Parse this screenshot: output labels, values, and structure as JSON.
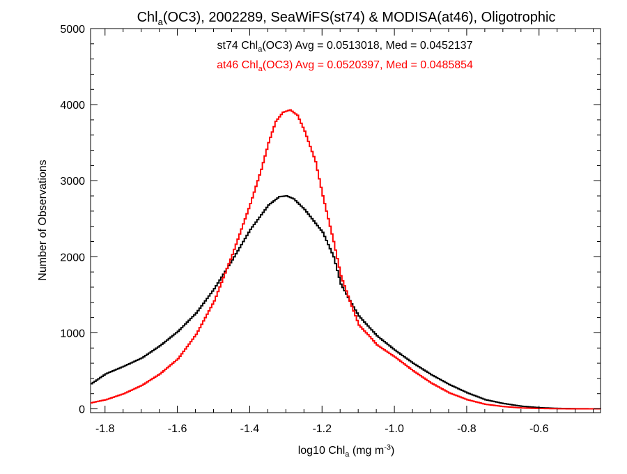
{
  "chart_data": {
    "type": "line",
    "title": {
      "pre": "Chl",
      "sub": "a",
      "post": "(OC3), 2002289, SeaWiFS(st74) & MODISA(at46), Oligotrophic"
    },
    "xlabel": {
      "pre": "log10 Chl",
      "sub": "a",
      "mid": " (mg m",
      "sup": "-3",
      "post": ")"
    },
    "ylabel": "Number of Observations",
    "xlim": [
      -1.84,
      -0.43
    ],
    "ylim": [
      -50,
      5000
    ],
    "x_ticks": [
      -1.8,
      -1.6,
      -1.4,
      -1.2,
      -1.0,
      -0.8,
      -0.6
    ],
    "x_tick_labels": [
      "-1.8",
      "-1.6",
      "-1.4",
      "-1.2",
      "-1.0",
      "-0.8",
      "-0.6"
    ],
    "y_ticks": [
      0,
      1000,
      2000,
      3000,
      4000,
      5000
    ],
    "y_tick_labels": [
      "0",
      "1000",
      "2000",
      "3000",
      "4000",
      "5000"
    ],
    "grid": false,
    "legend": "top-center annotations",
    "annotations": [
      {
        "pre": "st74 Chl",
        "sub": "a",
        "post": "(OC3) Avg = 0.0513018, Med = 0.0452137",
        "color": "#000000"
      },
      {
        "pre": "at46 Chl",
        "sub": "a",
        "post": "(OC3) Avg = 0.0520397, Med = 0.0485854",
        "color": "#ff0000"
      }
    ],
    "series": [
      {
        "color": "#000000",
        "points": [
          [
            -1.84,
            330
          ],
          [
            -1.8,
            460
          ],
          [
            -1.75,
            560
          ],
          [
            -1.7,
            670
          ],
          [
            -1.65,
            830
          ],
          [
            -1.6,
            1020
          ],
          [
            -1.55,
            1260
          ],
          [
            -1.5,
            1580
          ],
          [
            -1.45,
            1960
          ],
          [
            -1.4,
            2360
          ],
          [
            -1.35,
            2680
          ],
          [
            -1.32,
            2790
          ],
          [
            -1.3,
            2800
          ],
          [
            -1.28,
            2760
          ],
          [
            -1.25,
            2620
          ],
          [
            -1.2,
            2320
          ],
          [
            -1.17,
            2000
          ],
          [
            -1.15,
            1640
          ],
          [
            -1.12,
            1380
          ],
          [
            -1.1,
            1220
          ],
          [
            -1.05,
            960
          ],
          [
            -1.0,
            770
          ],
          [
            -0.95,
            600
          ],
          [
            -0.9,
            450
          ],
          [
            -0.85,
            320
          ],
          [
            -0.8,
            210
          ],
          [
            -0.75,
            120
          ],
          [
            -0.7,
            70
          ],
          [
            -0.65,
            35
          ],
          [
            -0.6,
            15
          ],
          [
            -0.55,
            6
          ],
          [
            -0.5,
            2
          ],
          [
            -0.43,
            0
          ]
        ]
      },
      {
        "color": "#ff0000",
        "points": [
          [
            -1.84,
            80
          ],
          [
            -1.8,
            120
          ],
          [
            -1.75,
            200
          ],
          [
            -1.7,
            310
          ],
          [
            -1.65,
            460
          ],
          [
            -1.6,
            660
          ],
          [
            -1.55,
            980
          ],
          [
            -1.5,
            1420
          ],
          [
            -1.45,
            2030
          ],
          [
            -1.4,
            2700
          ],
          [
            -1.37,
            3150
          ],
          [
            -1.35,
            3500
          ],
          [
            -1.33,
            3780
          ],
          [
            -1.31,
            3900
          ],
          [
            -1.29,
            3930
          ],
          [
            -1.27,
            3860
          ],
          [
            -1.25,
            3650
          ],
          [
            -1.22,
            3250
          ],
          [
            -1.2,
            2800
          ],
          [
            -1.17,
            2200
          ],
          [
            -1.15,
            1750
          ],
          [
            -1.12,
            1350
          ],
          [
            -1.1,
            1100
          ],
          [
            -1.07,
            950
          ],
          [
            -1.05,
            840
          ],
          [
            -1.0,
            680
          ],
          [
            -0.95,
            500
          ],
          [
            -0.9,
            340
          ],
          [
            -0.85,
            210
          ],
          [
            -0.8,
            120
          ],
          [
            -0.75,
            60
          ],
          [
            -0.7,
            30
          ],
          [
            -0.65,
            12
          ],
          [
            -0.6,
            5
          ],
          [
            -0.55,
            2
          ],
          [
            -0.5,
            0
          ],
          [
            -0.43,
            0
          ]
        ]
      }
    ]
  },
  "colors": {
    "axis": "#000000",
    "background": "#ffffff"
  }
}
